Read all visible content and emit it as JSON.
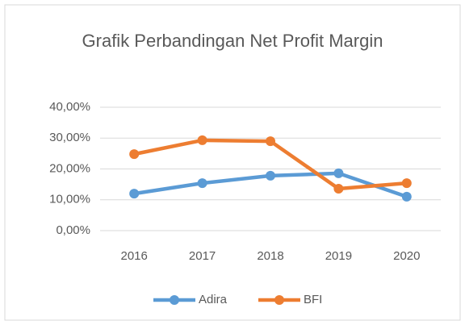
{
  "chart_data": {
    "type": "line",
    "title": "Grafik Perbandingan Net Profit Margin",
    "categories": [
      "2016",
      "2017",
      "2018",
      "2019",
      "2020"
    ],
    "series": [
      {
        "name": "Adira",
        "color": "#5b9bd5",
        "values": [
          12.0,
          15.4,
          17.8,
          18.6,
          11.0
        ]
      },
      {
        "name": "BFI",
        "color": "#ed7d31",
        "values": [
          24.8,
          29.3,
          29.0,
          13.6,
          15.4
        ]
      }
    ],
    "ylim": [
      0,
      40
    ],
    "yticks": [
      {
        "value": 0,
        "label": "0,00%"
      },
      {
        "value": 10,
        "label": "10,00%"
      },
      {
        "value": 20,
        "label": "20,00%"
      },
      {
        "value": 30,
        "label": "30,00%"
      },
      {
        "value": 40,
        "label": "40,00%"
      }
    ],
    "grid": true,
    "legend": "bottom"
  }
}
